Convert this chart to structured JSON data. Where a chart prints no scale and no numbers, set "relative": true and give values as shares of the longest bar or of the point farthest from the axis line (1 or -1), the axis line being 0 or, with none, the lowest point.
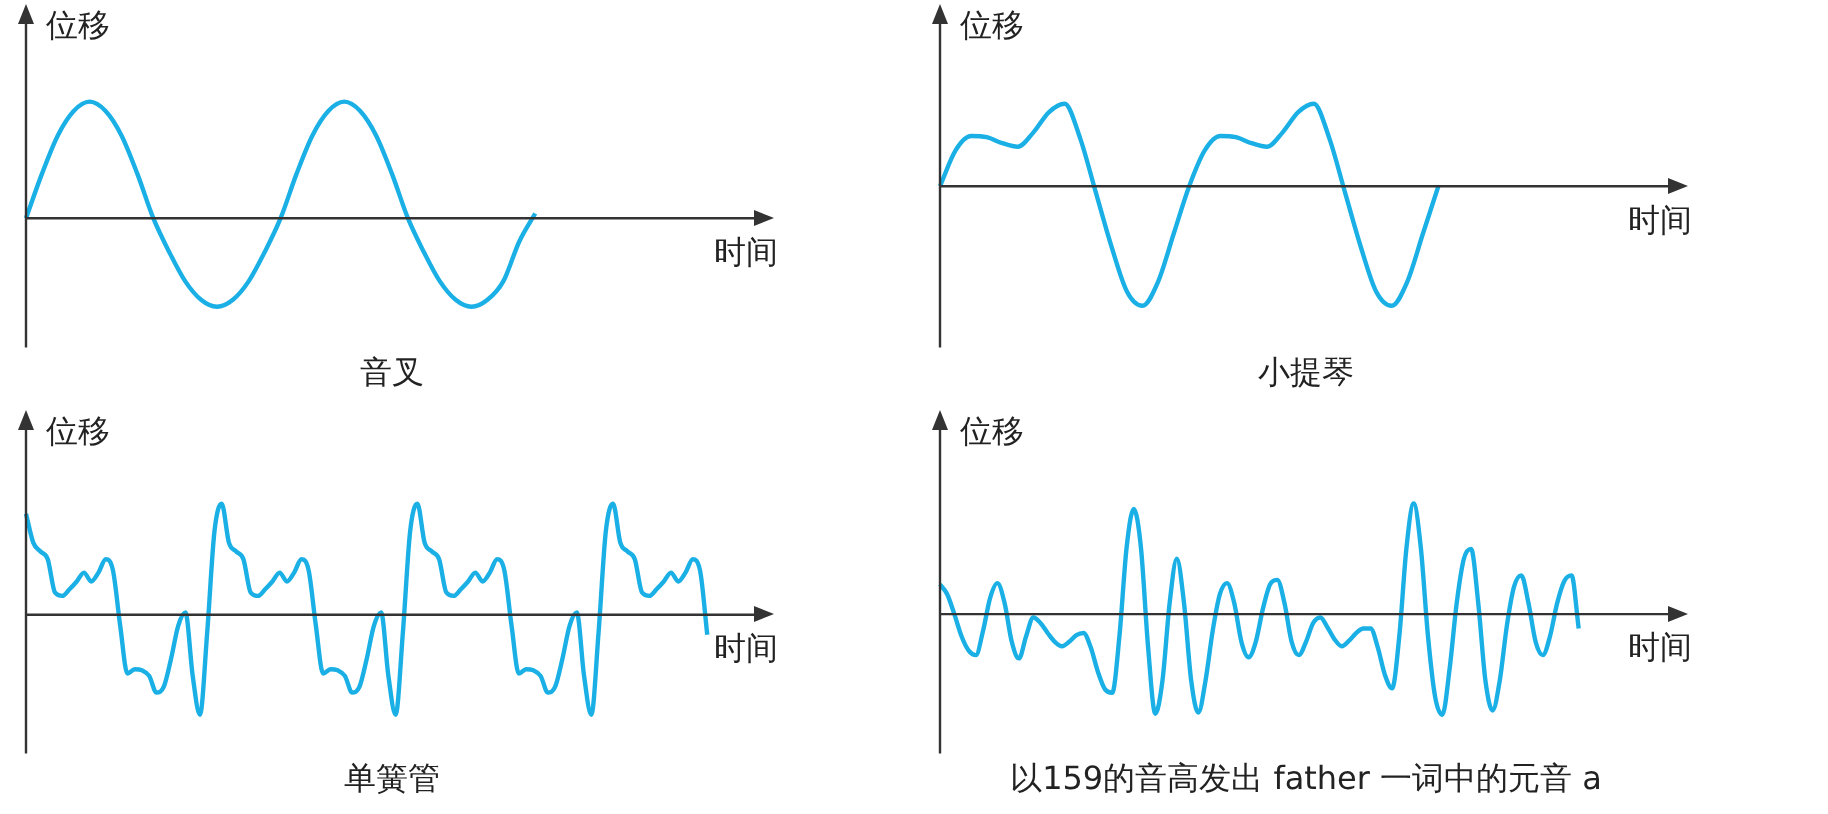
{
  "chart_data": [
    {
      "type": "line",
      "title": "音叉",
      "xlabel": "时间",
      "ylabel": "位移",
      "relative": true,
      "marker": "none",
      "color": "#1ab0e6",
      "categories": [
        null,
        null,
        null,
        null,
        null,
        null,
        null,
        null,
        null,
        null,
        null,
        null,
        null,
        null,
        null,
        null,
        null,
        null,
        null,
        null,
        null,
        null,
        null,
        null,
        null,
        null,
        null,
        null,
        null,
        null,
        null,
        null,
        null,
        null,
        null,
        null,
        null,
        null,
        null,
        null,
        null,
        null,
        null,
        null,
        null,
        null,
        null
      ],
      "values": [
        0,
        0.38,
        0.71,
        0.92,
        1,
        0.92,
        0.71,
        0.38,
        0,
        -0.29,
        -0.54,
        -0.7,
        -0.76,
        -0.7,
        -0.54,
        -0.29,
        0,
        0.38,
        0.71,
        0.92,
        1,
        0.92,
        0.71,
        0.38,
        0,
        -0.29,
        -0.54,
        -0.7,
        -0.76,
        -0.7,
        -0.54,
        -0.2,
        0.04,
        null,
        null,
        null,
        null,
        null,
        null,
        null,
        null,
        null,
        null,
        null,
        null,
        null,
        null
      ]
    },
    {
      "type": "line",
      "title": "小提琴",
      "xlabel": "时间",
      "ylabel": "位移",
      "relative": true,
      "marker": "none",
      "color": "#1ab0e6",
      "categories": [
        null,
        null,
        null,
        null,
        null,
        null,
        null,
        null,
        null,
        null,
        null,
        null,
        null,
        null,
        null,
        null,
        null,
        null,
        null,
        null,
        null,
        null,
        null,
        null,
        null,
        null,
        null,
        null,
        null,
        null,
        null,
        null,
        null,
        null,
        null,
        null,
        null,
        null,
        null,
        null,
        null,
        null,
        null,
        null,
        null,
        null,
        null,
        null
      ],
      "values": [
        0,
        0.3,
        0.42,
        0.41,
        0.36,
        0.33,
        0.45,
        0.62,
        0.69,
        0.4,
        -0.05,
        -0.5,
        -0.88,
        -1,
        -0.8,
        -0.4,
        0,
        0.3,
        0.42,
        0.41,
        0.36,
        0.33,
        0.45,
        0.62,
        0.69,
        0.4,
        -0.05,
        -0.5,
        -0.88,
        -1,
        -0.8,
        -0.4,
        0,
        null,
        null,
        null,
        null,
        null,
        null,
        null,
        null,
        null,
        null,
        null,
        null,
        null,
        null,
        null
      ]
    },
    {
      "type": "line",
      "title": "单簧管",
      "xlabel": "时间",
      "ylabel": "位移",
      "relative": true,
      "marker": "none",
      "color": "#1ab0e6",
      "categories": [
        null,
        null,
        null,
        null,
        null,
        null,
        null,
        null,
        null,
        null,
        null,
        null,
        null,
        null,
        null,
        null,
        null,
        null,
        null,
        null,
        null,
        null,
        null,
        null,
        null,
        null,
        null,
        null,
        null,
        null,
        null,
        null,
        null,
        null,
        null,
        null,
        null,
        null,
        null,
        null,
        null,
        null,
        null,
        null,
        null,
        null,
        null,
        null,
        null,
        null,
        null,
        null,
        null,
        null,
        null,
        null,
        null,
        null,
        null,
        null,
        null,
        null,
        null,
        null,
        null,
        null,
        null,
        null,
        null,
        null,
        null,
        null,
        null,
        null,
        null,
        null,
        null,
        null,
        null,
        null,
        null,
        null,
        null,
        null,
        null,
        null,
        null,
        null,
        null,
        null,
        null,
        null,
        null,
        null,
        null,
        null,
        null,
        null,
        null,
        null,
        null,
        null
      ],
      "values": [
        0.91,
        0.65,
        0.57,
        0.5,
        0.2,
        0.17,
        0.23,
        0.3,
        0.38,
        0.3,
        0.38,
        0.5,
        0.4,
        -0.1,
        -0.53,
        -0.49,
        -0.5,
        -0.55,
        -0.7,
        -0.65,
        -0.4,
        -0.1,
        0.02,
        -0.55,
        -0.9,
        -0.16,
        0.75,
        1,
        0.65,
        0.57,
        0.5,
        0.2,
        0.17,
        0.23,
        0.3,
        0.38,
        0.3,
        0.38,
        0.5,
        0.4,
        -0.1,
        -0.53,
        -0.49,
        -0.5,
        -0.55,
        -0.7,
        -0.65,
        -0.4,
        -0.1,
        0.02,
        -0.55,
        -0.9,
        -0.16,
        0.75,
        1,
        0.65,
        0.57,
        0.5,
        0.2,
        0.17,
        0.23,
        0.3,
        0.38,
        0.3,
        0.38,
        0.5,
        0.4,
        -0.1,
        -0.53,
        -0.49,
        -0.5,
        -0.55,
        -0.7,
        -0.65,
        -0.4,
        -0.1,
        0.02,
        -0.55,
        -0.9,
        -0.16,
        0.75,
        1,
        0.65,
        0.57,
        0.5,
        0.2,
        0.17,
        0.23,
        0.3,
        0.38,
        0.3,
        0.38,
        0.5,
        0.4,
        -0.18,
        null,
        null,
        null,
        null,
        null,
        null,
        null
      ]
    },
    {
      "type": "line",
      "title": "以159的音高发出 father 一词中的元音 a",
      "xlabel": "时间",
      "ylabel": "位移",
      "relative": true,
      "marker": "none",
      "color": "#1ab0e6",
      "categories": [
        null,
        null,
        null,
        null,
        null,
        null,
        null,
        null,
        null,
        null,
        null,
        null,
        null,
        null,
        null,
        null,
        null,
        null,
        null,
        null,
        null,
        null,
        null,
        null,
        null,
        null,
        null,
        null,
        null,
        null,
        null,
        null,
        null,
        null,
        null,
        null,
        null,
        null,
        null,
        null,
        null,
        null,
        null,
        null,
        null,
        null,
        null,
        null,
        null,
        null,
        null,
        null,
        null,
        null,
        null,
        null,
        null,
        null,
        null,
        null,
        null,
        null,
        null,
        null,
        null,
        null,
        null,
        null,
        null,
        null,
        null,
        null,
        null,
        null,
        null,
        null,
        null,
        null,
        null,
        null,
        null,
        null,
        null,
        null,
        null,
        null,
        null,
        null,
        null,
        null,
        null,
        null,
        null,
        null,
        null,
        null,
        null,
        null,
        null,
        null,
        null,
        null,
        null
      ],
      "values": [
        0.27,
        0.18,
        0,
        -0.2,
        -0.33,
        -0.37,
        -0.15,
        0.15,
        0.28,
        0.1,
        -0.25,
        -0.4,
        -0.2,
        -0.03,
        -0.08,
        -0.17,
        -0.25,
        -0.29,
        -0.25,
        -0.19,
        -0.17,
        -0.3,
        -0.52,
        -0.68,
        -0.71,
        -0.2,
        0.6,
        0.95,
        0.6,
        -0.3,
        -0.9,
        -0.6,
        0.1,
        0.5,
        0.1,
        -0.6,
        -0.89,
        -0.6,
        -0.15,
        0.18,
        0.28,
        0.1,
        -0.25,
        -0.39,
        -0.25,
        0.05,
        0.27,
        0.31,
        0.1,
        -0.25,
        -0.37,
        -0.25,
        -0.08,
        -0.03,
        -0.12,
        -0.23,
        -0.29,
        -0.24,
        -0.17,
        -0.13,
        -0.13,
        -0.3,
        -0.55,
        -0.67,
        -0.2,
        0.6,
        1,
        0.6,
        -0.2,
        -0.75,
        -0.91,
        -0.5,
        0.1,
        0.5,
        0.59,
        0.1,
        -0.6,
        -0.87,
        -0.6,
        -0.1,
        0.25,
        0.35,
        0.1,
        -0.25,
        -0.37,
        -0.2,
        0.1,
        0.3,
        0.35,
        -0.13,
        null,
        null,
        null,
        null,
        null,
        null,
        null,
        null,
        null,
        null,
        null,
        null,
        null
      ]
    }
  ]
}
